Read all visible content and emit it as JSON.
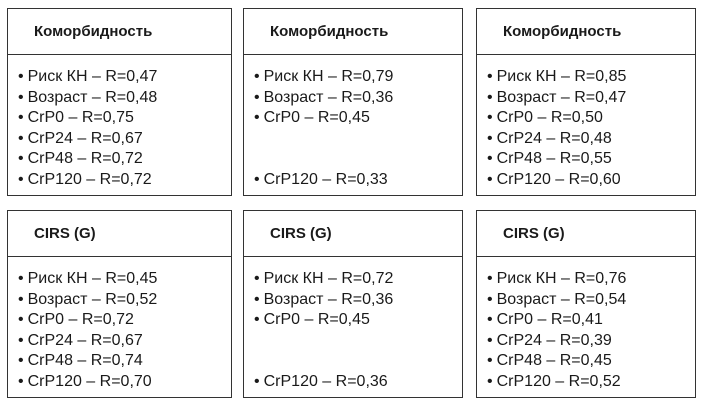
{
  "panels": [
    {
      "title": "Коморбидность",
      "items": [
        {
          "text": "Риск КН – R=0,47",
          "row": 0
        },
        {
          "text": "Возраст – R=0,48",
          "row": 1
        },
        {
          "text": "CrP0 – R=0,75",
          "row": 2
        },
        {
          "text": "CrP24 – R=0,67",
          "row": 3
        },
        {
          "text": "CrP48 – R=0,72",
          "row": 4
        },
        {
          "text": "CrP120 – R=0,72",
          "row": 5
        }
      ]
    },
    {
      "title": "Коморбидность",
      "items": [
        {
          "text": "Риск КН – R=0,79",
          "row": 0
        },
        {
          "text": "Возраст – R=0,36",
          "row": 1
        },
        {
          "text": "CrP0 – R=0,45",
          "row": 2
        },
        {
          "text": "CrP120 – R=0,33",
          "row": 5
        }
      ]
    },
    {
      "title": "Коморбидность",
      "items": [
        {
          "text": "Риск КН – R=0,85",
          "row": 0
        },
        {
          "text": "Возраст – R=0,47",
          "row": 1
        },
        {
          "text": "CrP0 – R=0,50",
          "row": 2
        },
        {
          "text": "CrP24 – R=0,48",
          "row": 3
        },
        {
          "text": "CrP48 – R=0,55",
          "row": 4
        },
        {
          "text": "CrP120 – R=0,60",
          "row": 5
        }
      ]
    },
    {
      "title": "CIRS (G)",
      "items": [
        {
          "text": "Риск КН – R=0,45",
          "row": 0
        },
        {
          "text": "Возраст – R=0,52",
          "row": 1
        },
        {
          "text": "CrP0 – R=0,72",
          "row": 2
        },
        {
          "text": "CrP24 – R=0,67",
          "row": 3
        },
        {
          "text": "CrP48 – R=0,74",
          "row": 4
        },
        {
          "text": "CrP120 – R=0,70",
          "row": 5
        }
      ]
    },
    {
      "title": "CIRS (G)",
      "items": [
        {
          "text": "Риск КН – R=0,72",
          "row": 0
        },
        {
          "text": "Возраст – R=0,36",
          "row": 1
        },
        {
          "text": "CrP0 – R=0,45",
          "row": 2
        },
        {
          "text": "CrP120 – R=0,36",
          "row": 5
        }
      ]
    },
    {
      "title": "CIRS (G)",
      "items": [
        {
          "text": "Риск КН – R=0,76",
          "row": 0
        },
        {
          "text": "Возраст – R=0,54",
          "row": 1
        },
        {
          "text": "CrP0 – R=0,41",
          "row": 2
        },
        {
          "text": "CrP24 – R=0,39",
          "row": 3
        },
        {
          "text": "CrP48 – R=0,45",
          "row": 4
        },
        {
          "text": "CrP120 – R=0,52",
          "row": 5
        }
      ]
    }
  ]
}
